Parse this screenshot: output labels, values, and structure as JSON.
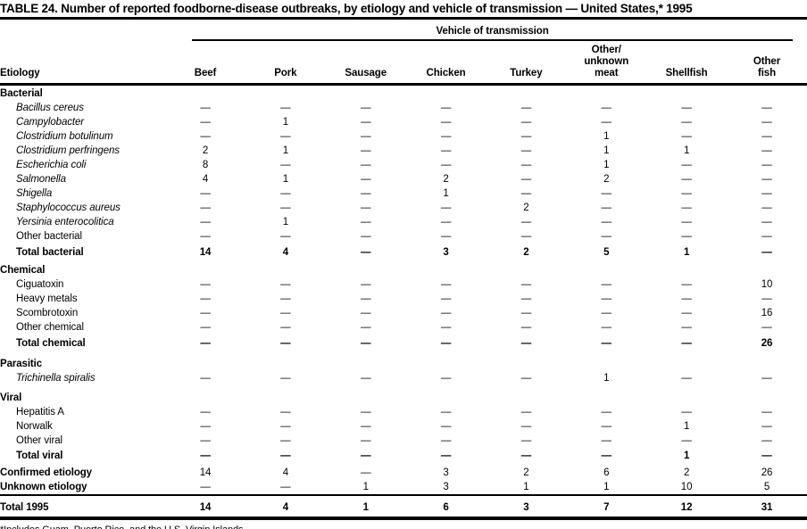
{
  "title": "TABLE 24. Number of reported foodborne-disease outbreaks, by etiology and vehicle of transmission — United States,* 1995",
  "footnote": "*Includes Guam, Puerto Rico, and the U.S. Virgin Islands.",
  "colors": {
    "text": "#000000",
    "background": "#ffffff",
    "rule": "#000000"
  },
  "table": {
    "spanner_label": "Vehicle of transmission",
    "etiology_header": "Etiology",
    "columns": [
      "Beef",
      "Pork",
      "Sausage",
      "Chicken",
      "Turkey",
      "Other/\nunknown\nmeat",
      "Shellfish",
      "Other\nfish"
    ],
    "sections": [
      {
        "header": "Bacterial",
        "rows": [
          {
            "label": "Bacillus cereus",
            "italic": true,
            "values": [
              "—",
              "—",
              "—",
              "—",
              "—",
              "—",
              "—",
              "—"
            ]
          },
          {
            "label": "Campylobacter",
            "italic": true,
            "values": [
              "—",
              "1",
              "—",
              "—",
              "—",
              "—",
              "—",
              "—"
            ]
          },
          {
            "label": "Clostridium botulinum",
            "italic": true,
            "values": [
              "—",
              "—",
              "—",
              "—",
              "—",
              "1",
              "—",
              "—"
            ]
          },
          {
            "label": "Clostridium perfringens",
            "italic": true,
            "values": [
              "2",
              "1",
              "—",
              "—",
              "—",
              "1",
              "1",
              "—"
            ]
          },
          {
            "label": "Escherichia coli",
            "italic": true,
            "values": [
              "8",
              "—",
              "—",
              "—",
              "—",
              "1",
              "—",
              "—"
            ]
          },
          {
            "label": "Salmonella",
            "italic": true,
            "values": [
              "4",
              "1",
              "—",
              "2",
              "—",
              "2",
              "—",
              "—"
            ]
          },
          {
            "label": "Shigella",
            "italic": true,
            "values": [
              "—",
              "—",
              "—",
              "1",
              "—",
              "—",
              "—",
              "—"
            ]
          },
          {
            "label": "Staphylococcus aureus",
            "italic": true,
            "values": [
              "—",
              "—",
              "—",
              "—",
              "2",
              "—",
              "—",
              "—"
            ]
          },
          {
            "label": "Yersinia enterocolitica",
            "italic": true,
            "values": [
              "—",
              "1",
              "—",
              "—",
              "—",
              "—",
              "—",
              "—"
            ]
          },
          {
            "label": "Other bacterial",
            "italic": false,
            "values": [
              "—",
              "—",
              "—",
              "—",
              "—",
              "—",
              "—",
              "—"
            ]
          },
          {
            "label": "Total bacterial",
            "total": true,
            "values": [
              "14",
              "4",
              "—",
              "3",
              "2",
              "5",
              "1",
              "—"
            ]
          }
        ]
      },
      {
        "header": "Chemical",
        "rows": [
          {
            "label": "Ciguatoxin",
            "values": [
              "—",
              "—",
              "—",
              "—",
              "—",
              "—",
              "—",
              "10"
            ]
          },
          {
            "label": "Heavy metals",
            "values": [
              "—",
              "—",
              "—",
              "—",
              "—",
              "—",
              "—",
              "—"
            ]
          },
          {
            "label": "Scombrotoxin",
            "values": [
              "—",
              "—",
              "—",
              "—",
              "—",
              "—",
              "—",
              "16"
            ]
          },
          {
            "label": "Other chemical",
            "values": [
              "—",
              "—",
              "—",
              "—",
              "—",
              "—",
              "—",
              "—"
            ]
          },
          {
            "label": "Total chemical",
            "total": true,
            "values": [
              "—",
              "—",
              "—",
              "—",
              "—",
              "—",
              "—",
              "26"
            ]
          }
        ]
      },
      {
        "header": "Parasitic",
        "rows": [
          {
            "label": "Trichinella spiralis",
            "italic": true,
            "values": [
              "—",
              "—",
              "—",
              "—",
              "—",
              "1",
              "—",
              "—"
            ]
          }
        ]
      },
      {
        "header": "Viral",
        "rows": [
          {
            "label": "Hepatitis A",
            "values": [
              "—",
              "—",
              "—",
              "—",
              "—",
              "—",
              "—",
              "—"
            ]
          },
          {
            "label": "Norwalk",
            "values": [
              "—",
              "—",
              "—",
              "—",
              "—",
              "—",
              "1",
              "—"
            ]
          },
          {
            "label": "Other viral",
            "values": [
              "—",
              "—",
              "—",
              "—",
              "—",
              "—",
              "—",
              "—"
            ]
          },
          {
            "label": "Total viral",
            "total": true,
            "values": [
              "—",
              "—",
              "—",
              "—",
              "—",
              "—",
              "1",
              "—"
            ]
          }
        ]
      }
    ],
    "summary_rows": [
      {
        "label": "Confirmed etiology",
        "values": [
          "14",
          "4",
          "—",
          "3",
          "2",
          "6",
          "2",
          "26"
        ]
      },
      {
        "label": "Unknown etiology",
        "values": [
          "—",
          "—",
          "1",
          "3",
          "1",
          "1",
          "10",
          "5"
        ]
      }
    ],
    "total_row": {
      "label": "Total 1995",
      "values": [
        "14",
        "4",
        "1",
        "6",
        "3",
        "7",
        "12",
        "31"
      ]
    }
  }
}
